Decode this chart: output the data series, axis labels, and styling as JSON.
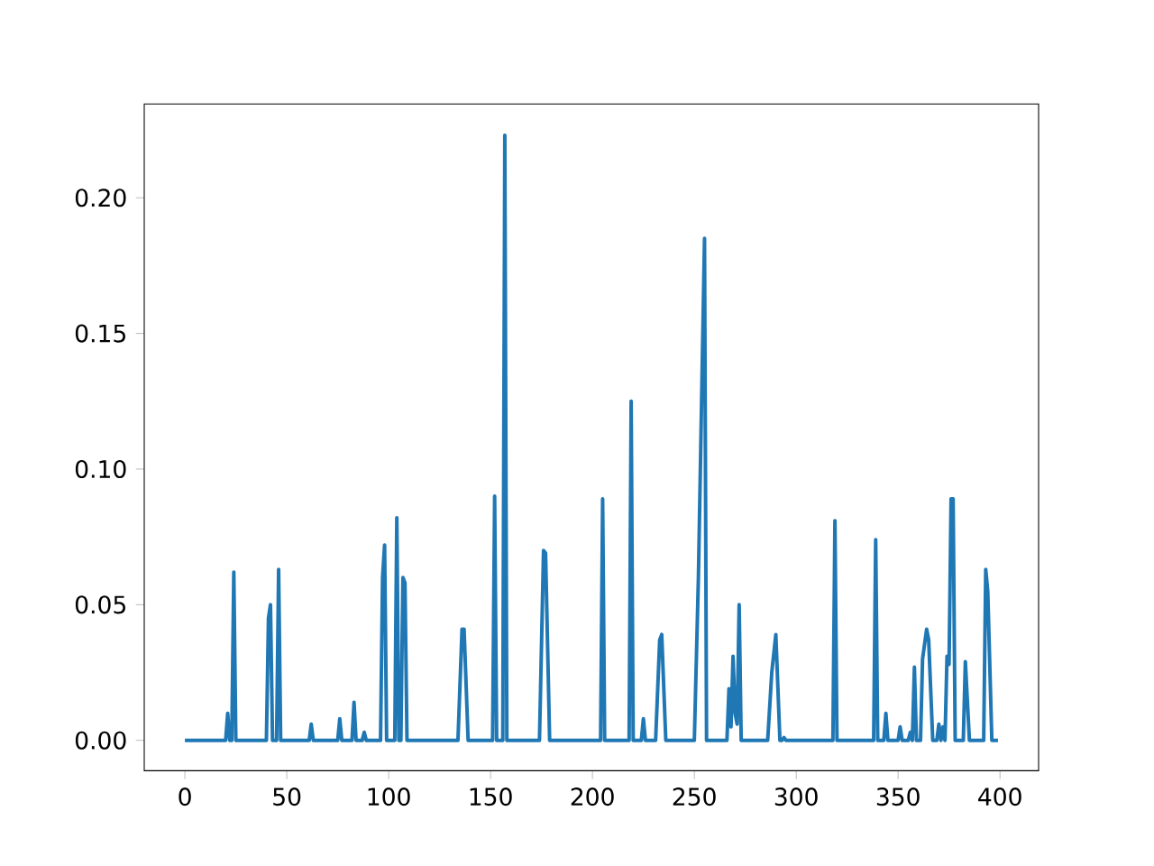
{
  "chart_data": {
    "type": "line",
    "color": "#1f77b4",
    "x": [
      0,
      20,
      21,
      22,
      23,
      24,
      25,
      40,
      41,
      42,
      43,
      45,
      46,
      47,
      61,
      62,
      63,
      75,
      76,
      77,
      82,
      83,
      84,
      87,
      88,
      89,
      96,
      97,
      98,
      99,
      103,
      104,
      105,
      106,
      107,
      108,
      109,
      134,
      136,
      137,
      139,
      151,
      152,
      153,
      156,
      157,
      158,
      174,
      176,
      177,
      179,
      204,
      205,
      206,
      218,
      219,
      220,
      224,
      225,
      226,
      231,
      233,
      234,
      236,
      250,
      252,
      255,
      256,
      266,
      267,
      268,
      269,
      270,
      271,
      272,
      273,
      286,
      288,
      290,
      292,
      293,
      294,
      295,
      318,
      319,
      320,
      338,
      339,
      340,
      343,
      344,
      345,
      350,
      351,
      352,
      355,
      356,
      357,
      358,
      359,
      361,
      362,
      364,
      365,
      367,
      369,
      370,
      371,
      372,
      373,
      374,
      375,
      376,
      377,
      378,
      382,
      383,
      385,
      392,
      393,
      394,
      396,
      399
    ],
    "values": [
      0,
      0,
      0.01,
      0,
      0,
      0.062,
      0,
      0,
      0.045,
      0.05,
      0,
      0,
      0.063,
      0,
      0,
      0.006,
      0,
      0,
      0.008,
      0,
      0,
      0.014,
      0,
      0,
      0.003,
      0,
      0,
      0.06,
      0.072,
      0,
      0,
      0.082,
      0,
      0,
      0.06,
      0.058,
      0,
      0,
      0.041,
      0.041,
      0,
      0,
      0.09,
      0,
      0,
      0.223,
      0,
      0,
      0.07,
      0.069,
      0,
      0,
      0.089,
      0,
      0,
      0.125,
      0,
      0,
      0.008,
      0,
      0,
      0.037,
      0.039,
      0,
      0,
      0.06,
      0.185,
      0,
      0,
      0.019,
      0.005,
      0.031,
      0.01,
      0.006,
      0.05,
      0,
      0,
      0.025,
      0.039,
      0,
      0,
      0.001,
      0,
      0,
      0.081,
      0,
      0,
      0.074,
      0,
      0,
      0.01,
      0,
      0,
      0.005,
      0,
      0,
      0.003,
      0,
      0.027,
      0,
      0,
      0.03,
      0.041,
      0.037,
      0,
      0,
      0.006,
      0,
      0.005,
      0,
      0.031,
      0.028,
      0.089,
      0.089,
      0,
      0,
      0.029,
      0,
      0,
      0.063,
      0.055,
      0,
      0
    ],
    "xlim": [
      -19.95,
      418.95
    ],
    "ylim": [
      -0.0112,
      0.2346
    ],
    "xticks": [
      0,
      50,
      100,
      150,
      200,
      250,
      300,
      350,
      400
    ],
    "yticks": [
      {
        "value": 0,
        "label": "0.00"
      },
      {
        "value": 0.05,
        "label": "0.05"
      },
      {
        "value": 0.1,
        "label": "0.10"
      },
      {
        "value": 0.15,
        "label": "0.15"
      },
      {
        "value": 0.2,
        "label": "0.20"
      }
    ],
    "grid": false,
    "marker": "none",
    "line_style": "solid"
  }
}
